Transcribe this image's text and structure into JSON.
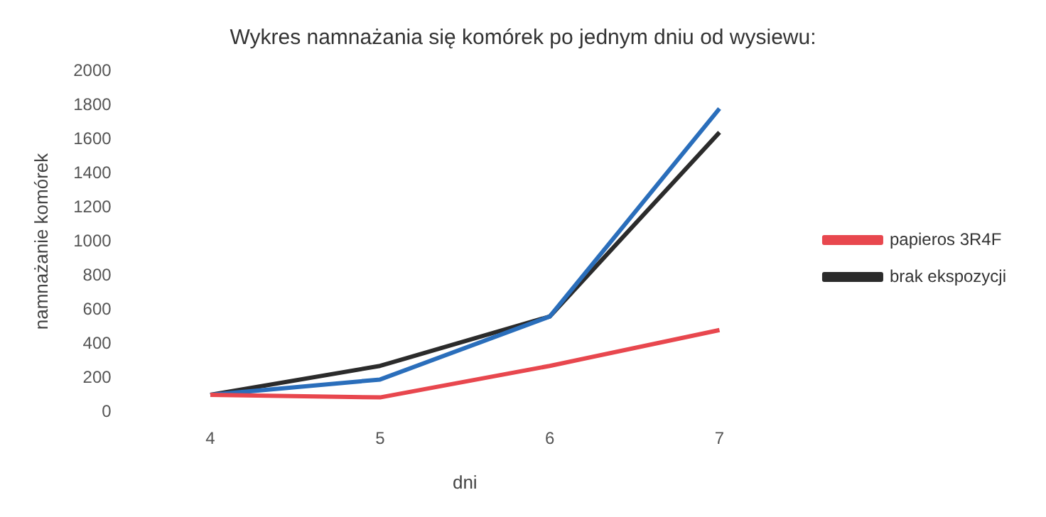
{
  "chart_data": {
    "type": "line",
    "title": "Wykres namnażania się komórek po jednym dniu od wysiewu:",
    "xlabel": "dni",
    "ylabel": "namnażanie komórek",
    "categories": [
      "4",
      "5",
      "6",
      "7"
    ],
    "series": [
      {
        "name": "papieros 3R4F",
        "color": "#e8474e",
        "values": [
          100,
          85,
          270,
          480
        ]
      },
      {
        "color": "#2a6ebb",
        "values": [
          100,
          190,
          560,
          1780
        ]
      },
      {
        "name": "brak ekspozycji",
        "color": "#2b2b2b",
        "values": [
          100,
          270,
          560,
          1640
        ]
      }
    ],
    "ylim": [
      0,
      2000
    ],
    "yticks": [
      0,
      200,
      400,
      600,
      800,
      1000,
      1200,
      1400,
      1600,
      1800,
      2000
    ],
    "grid": false,
    "legend": "right",
    "marker": "none",
    "line_style": "solid"
  }
}
